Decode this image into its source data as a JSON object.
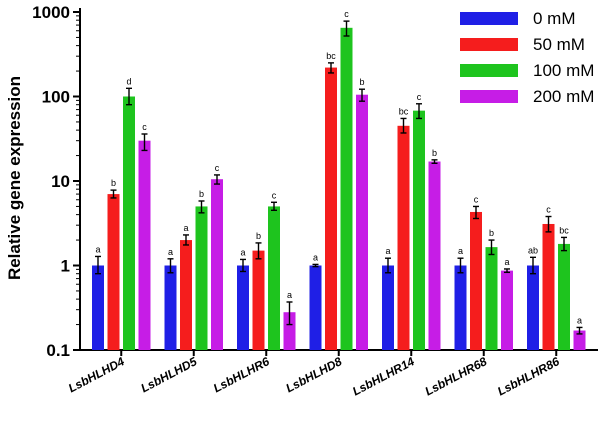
{
  "chart_data": {
    "type": "bar",
    "title": "",
    "xlabel": "",
    "ylabel": "Relative gene expression",
    "yscale": "log",
    "ylim": [
      0.1,
      1000
    ],
    "yticks": [
      0.1,
      1,
      10,
      100,
      1000
    ],
    "ytick_labels": [
      "0.1",
      "1",
      "10",
      "100",
      "1000"
    ],
    "grid": false,
    "legend_position": "top-right",
    "categories": [
      "LsbHLHD4",
      "LsbHLHD5",
      "LsbHLHR6",
      "LsbHLHD8",
      "LsbHLHR14",
      "LsbHLHR68",
      "LsbHLHR86"
    ],
    "series": [
      {
        "name": "0 mM",
        "color": "#1f1fe6",
        "values": [
          1.0,
          1.0,
          1.0,
          1.0,
          1.0,
          1.0,
          1.0
        ],
        "err_low": [
          0.8,
          0.82,
          0.85,
          0.97,
          0.82,
          0.82,
          0.8
        ],
        "err_high": [
          1.28,
          1.2,
          1.18,
          1.03,
          1.22,
          1.22,
          1.25
        ],
        "sig": [
          "a",
          "a",
          "a",
          "a",
          "a",
          "a",
          "ab"
        ]
      },
      {
        "name": "50 mM",
        "color": "#f51d1d",
        "values": [
          7.0,
          2.0,
          1.5,
          220,
          45,
          4.3,
          3.1
        ],
        "err_low": [
          6.3,
          1.75,
          1.2,
          190,
          37,
          3.6,
          2.5
        ],
        "err_high": [
          7.8,
          2.3,
          1.85,
          250,
          55,
          5.0,
          3.8
        ],
        "sig": [
          "b",
          "a",
          "b",
          "bc",
          "bc",
          "c",
          "c"
        ]
      },
      {
        "name": "100 mM",
        "color": "#1ec41e",
        "values": [
          100,
          5.0,
          5.0,
          650,
          68,
          1.65,
          1.8
        ],
        "err_low": [
          80,
          4.2,
          4.5,
          520,
          55,
          1.35,
          1.5
        ],
        "err_high": [
          125,
          5.8,
          5.6,
          780,
          82,
          2.0,
          2.15
        ],
        "sig": [
          "d",
          "b",
          "c",
          "c",
          "c",
          "b",
          "bc"
        ]
      },
      {
        "name": "200 mM",
        "color": "#c61de6",
        "values": [
          30,
          10.5,
          0.28,
          105,
          17,
          0.87,
          0.17
        ],
        "err_low": [
          23,
          9.2,
          0.2,
          88,
          16.2,
          0.83,
          0.155
        ],
        "err_high": [
          36,
          11.8,
          0.37,
          122,
          17.8,
          0.91,
          0.185
        ],
        "sig": [
          "c",
          "c",
          "a",
          "b",
          "b",
          "a",
          "a"
        ]
      }
    ]
  }
}
